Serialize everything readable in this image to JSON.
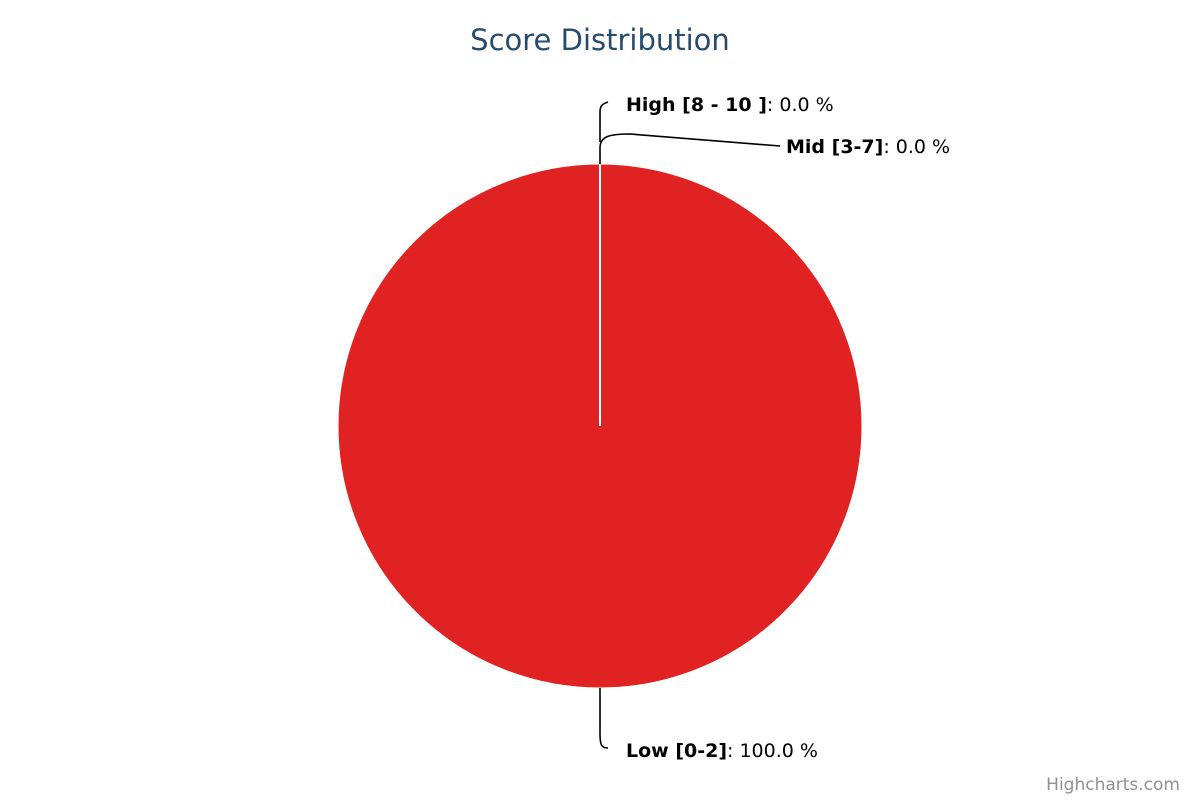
{
  "chart_data": {
    "type": "pie",
    "title": "Score Distribution",
    "slices": [
      {
        "name": "Low [0-2]",
        "value": 100.0,
        "label_value": "100.0 %",
        "color": "#e02222"
      },
      {
        "name": "Mid [3-7]",
        "value": 0.0,
        "label_value": "0.0 %",
        "color": "#e02222"
      },
      {
        "name": "High [8 - 10 ]",
        "value": 0.0,
        "label_value": "0.0 %",
        "color": "#e02222"
      }
    ],
    "data_labels": true,
    "legend": "none"
  },
  "credits": "Highcharts.com",
  "colors": {
    "title": "#274b6d",
    "slice_border": "#ffffff",
    "connector": "#000000",
    "credits": "#909090"
  }
}
